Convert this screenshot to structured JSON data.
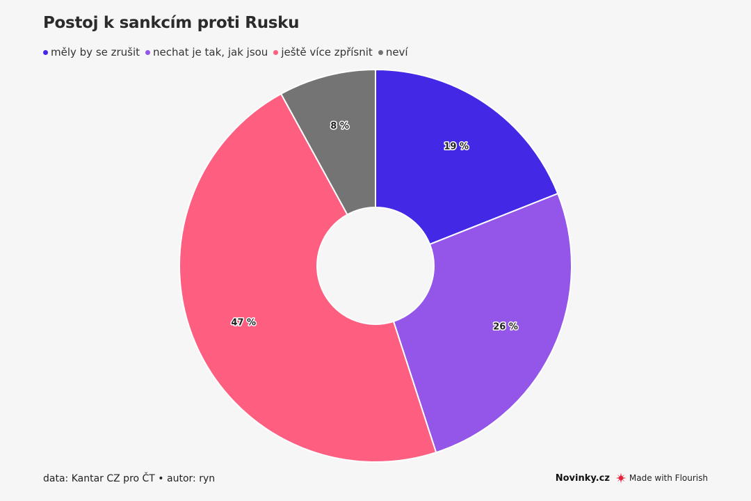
{
  "chart_data": {
    "type": "pie",
    "title": "Postoj k sankcím proti Rusku",
    "legend_position": "top-left",
    "donut": true,
    "slices": [
      {
        "name": "měly by se zrušit",
        "value": 19,
        "label": "19 %",
        "color": "#4328e6"
      },
      {
        "name": "nechat je tak, jak jsou",
        "value": 26,
        "label": "26 %",
        "color": "#9356e8"
      },
      {
        "name": "ještě více zpřísnit",
        "value": 47,
        "label": "47 %",
        "color": "#fe5f80"
      },
      {
        "name": "neví",
        "value": 8,
        "label": "8 %",
        "color": "#747474"
      }
    ]
  },
  "footer": {
    "source": "data: Kantar CZ pro ČT • autor: ryn",
    "brand": "Novinky.cz",
    "made_with": "Made with Flourish"
  }
}
